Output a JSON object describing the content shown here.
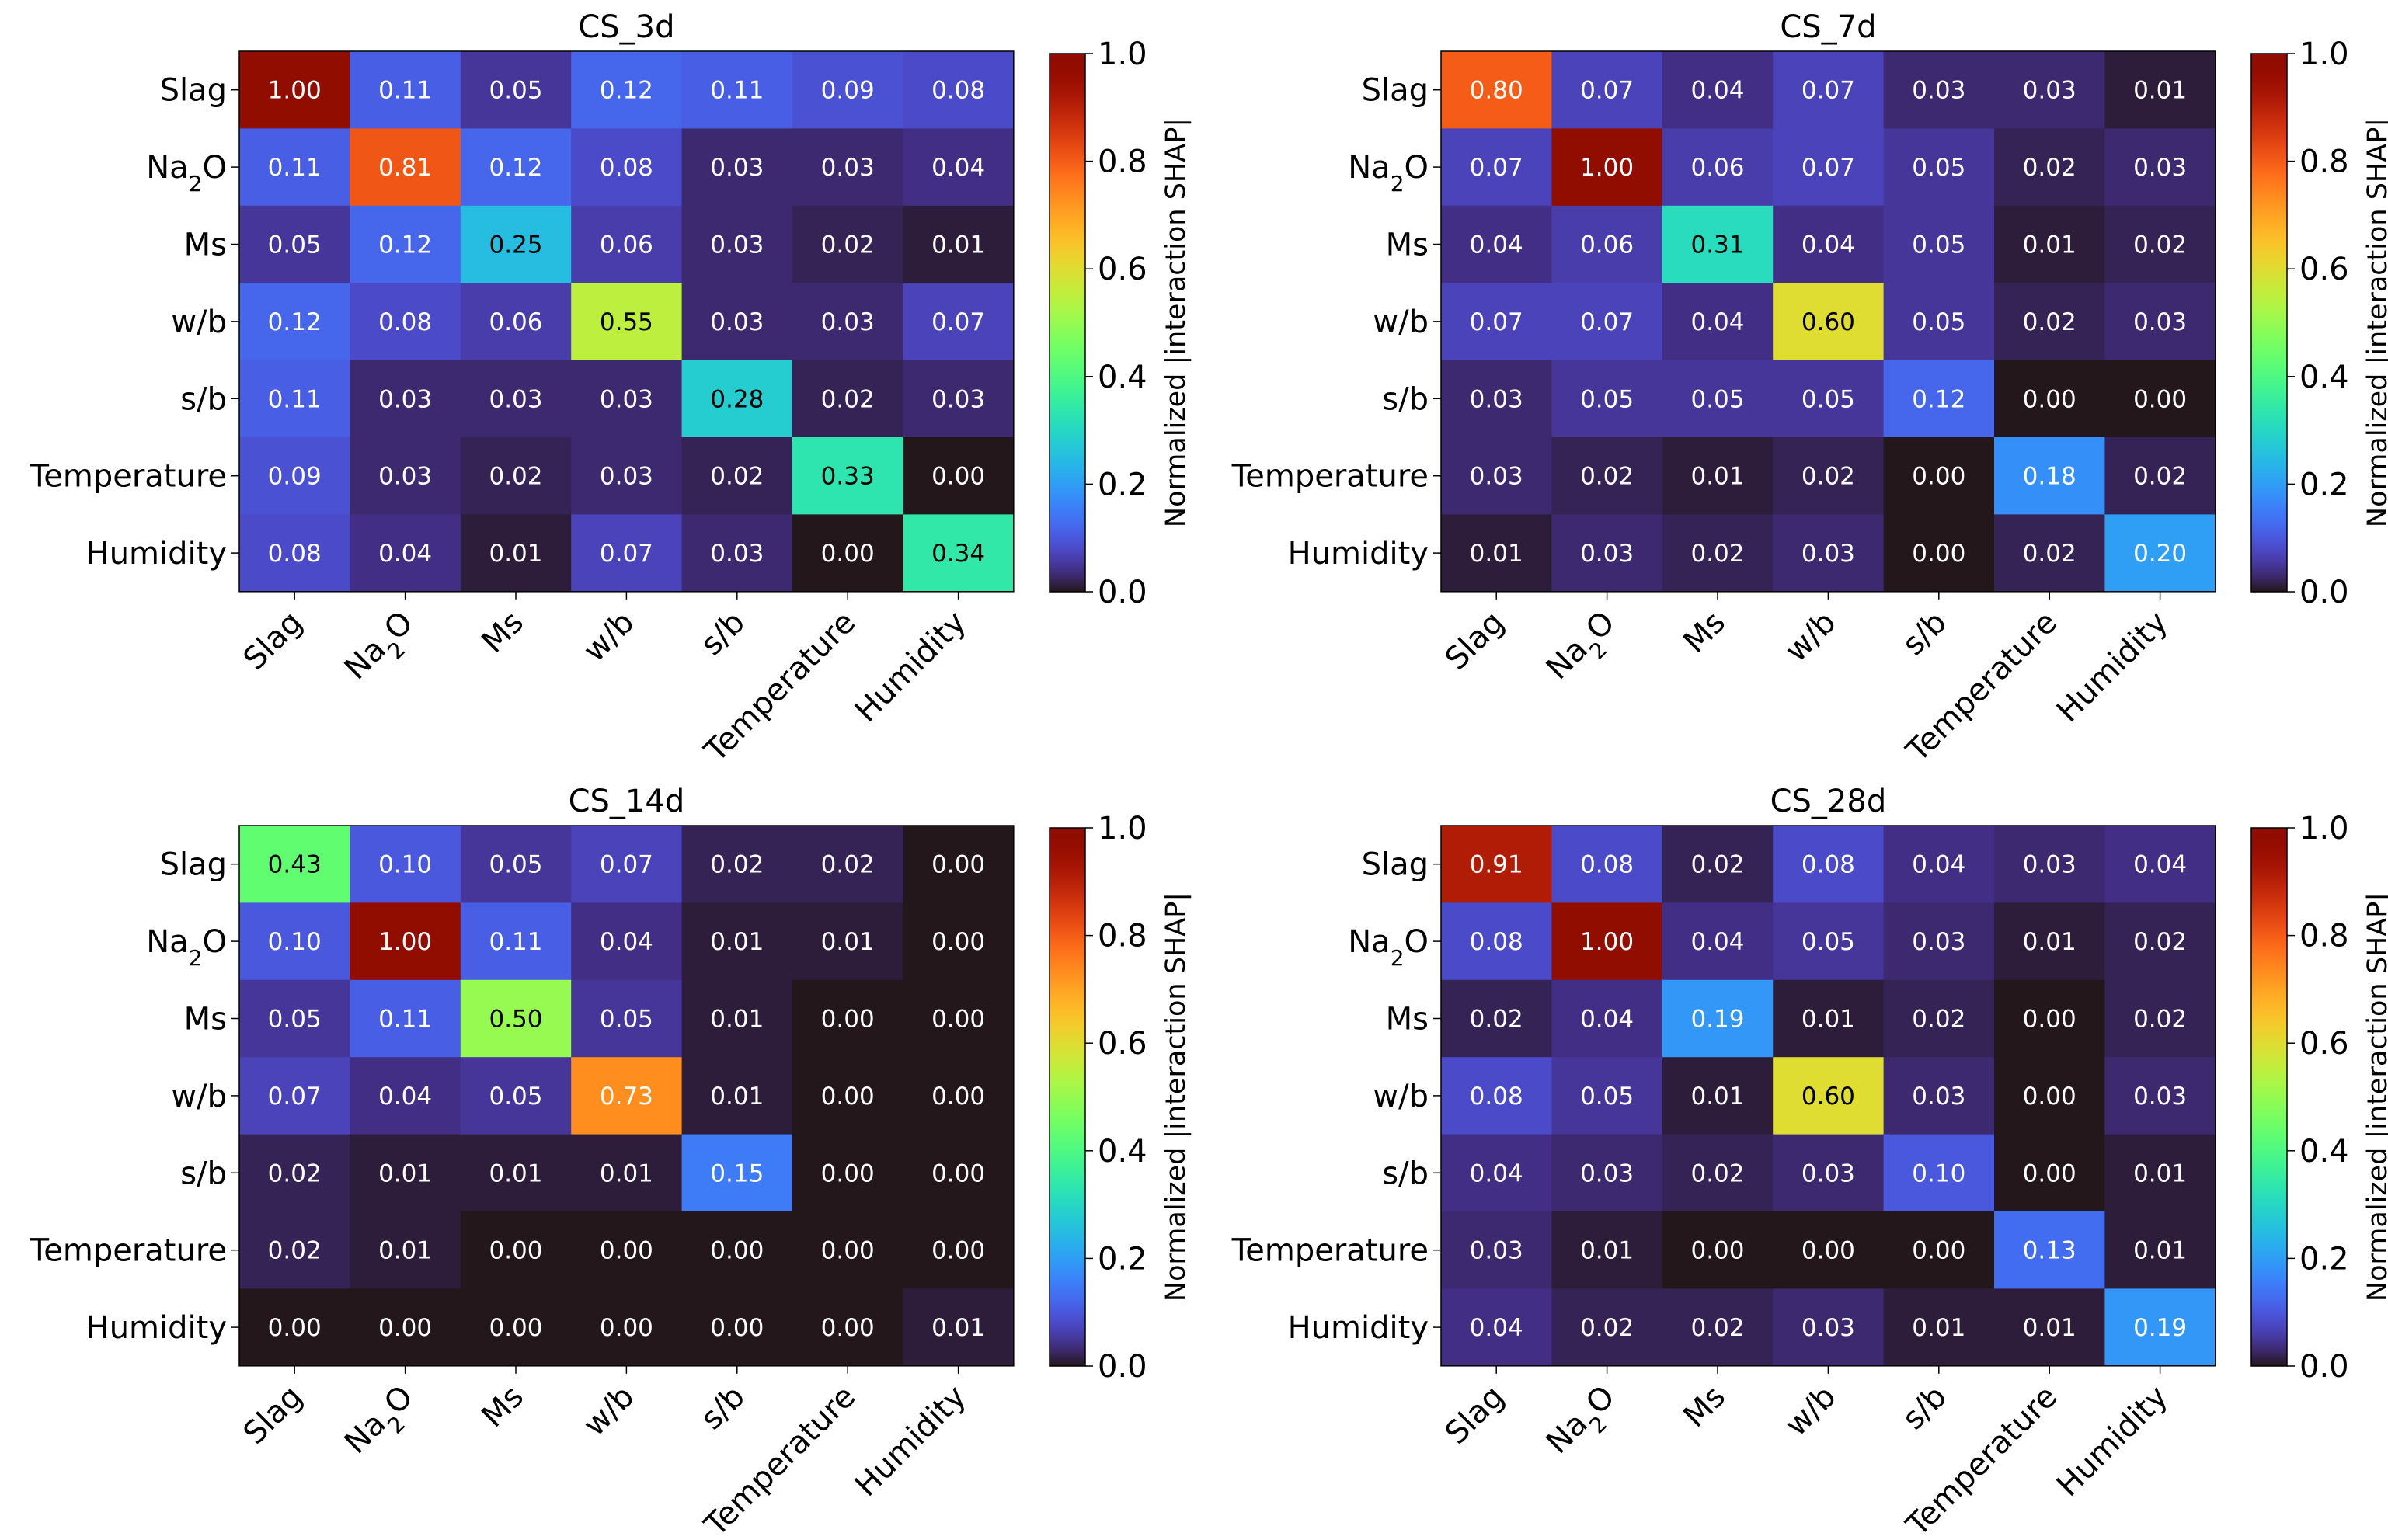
{
  "figure": {
    "features": [
      "Slag",
      "Na2O",
      "Ms",
      "w/b",
      "s/b",
      "Temperature",
      "Humidity"
    ],
    "colorbar": {
      "label": "Normalized |interaction SHAP|",
      "ticks": [
        "0.0",
        "0.2",
        "0.4",
        "0.6",
        "0.8",
        "1.0"
      ],
      "range": [
        0,
        1
      ],
      "colormap": "turbo"
    }
  },
  "chart_data": [
    {
      "type": "heatmap",
      "title": "CS_3d",
      "x": [
        "Slag",
        "Na2O",
        "Ms",
        "w/b",
        "s/b",
        "Temperature",
        "Humidity"
      ],
      "y": [
        "Slag",
        "Na2O",
        "Ms",
        "w/b",
        "s/b",
        "Temperature",
        "Humidity"
      ],
      "zlim": [
        0,
        1
      ],
      "colorbar_label": "Normalized |interaction SHAP|",
      "values": [
        [
          1.0,
          0.11,
          0.05,
          0.12,
          0.11,
          0.09,
          0.08
        ],
        [
          0.11,
          0.81,
          0.12,
          0.08,
          0.03,
          0.03,
          0.04
        ],
        [
          0.05,
          0.12,
          0.25,
          0.06,
          0.03,
          0.02,
          0.01
        ],
        [
          0.12,
          0.08,
          0.06,
          0.55,
          0.03,
          0.03,
          0.07
        ],
        [
          0.11,
          0.03,
          0.03,
          0.03,
          0.28,
          0.02,
          0.03
        ],
        [
          0.09,
          0.03,
          0.02,
          0.03,
          0.02,
          0.33,
          0.0
        ],
        [
          0.08,
          0.04,
          0.01,
          0.07,
          0.03,
          0.0,
          0.34
        ]
      ]
    },
    {
      "type": "heatmap",
      "title": "CS_7d",
      "x": [
        "Slag",
        "Na2O",
        "Ms",
        "w/b",
        "s/b",
        "Temperature",
        "Humidity"
      ],
      "y": [
        "Slag",
        "Na2O",
        "Ms",
        "w/b",
        "s/b",
        "Temperature",
        "Humidity"
      ],
      "zlim": [
        0,
        1
      ],
      "colorbar_label": "Normalized |interaction SHAP|",
      "values": [
        [
          0.8,
          0.07,
          0.04,
          0.07,
          0.03,
          0.03,
          0.01
        ],
        [
          0.07,
          1.0,
          0.06,
          0.07,
          0.05,
          0.02,
          0.03
        ],
        [
          0.04,
          0.06,
          0.31,
          0.04,
          0.05,
          0.01,
          0.02
        ],
        [
          0.07,
          0.07,
          0.04,
          0.6,
          0.05,
          0.02,
          0.03
        ],
        [
          0.03,
          0.05,
          0.05,
          0.05,
          0.12,
          0.0,
          0.0
        ],
        [
          0.03,
          0.02,
          0.01,
          0.02,
          0.0,
          0.18,
          0.02
        ],
        [
          0.01,
          0.03,
          0.02,
          0.03,
          0.0,
          0.02,
          0.2
        ]
      ]
    },
    {
      "type": "heatmap",
      "title": "CS_14d",
      "x": [
        "Slag",
        "Na2O",
        "Ms",
        "w/b",
        "s/b",
        "Temperature",
        "Humidity"
      ],
      "y": [
        "Slag",
        "Na2O",
        "Ms",
        "w/b",
        "s/b",
        "Temperature",
        "Humidity"
      ],
      "zlim": [
        0,
        1
      ],
      "colorbar_label": "Normalized |interaction SHAP|",
      "values": [
        [
          0.43,
          0.1,
          0.05,
          0.07,
          0.02,
          0.02,
          0.0
        ],
        [
          0.1,
          1.0,
          0.11,
          0.04,
          0.01,
          0.01,
          0.0
        ],
        [
          0.05,
          0.11,
          0.5,
          0.05,
          0.01,
          0.0,
          0.0
        ],
        [
          0.07,
          0.04,
          0.05,
          0.73,
          0.01,
          0.0,
          0.0
        ],
        [
          0.02,
          0.01,
          0.01,
          0.01,
          0.15,
          0.0,
          0.0
        ],
        [
          0.02,
          0.01,
          0.0,
          0.0,
          0.0,
          0.0,
          0.0
        ],
        [
          0.0,
          0.0,
          0.0,
          0.0,
          0.0,
          0.0,
          0.01
        ]
      ]
    },
    {
      "type": "heatmap",
      "title": "CS_28d",
      "x": [
        "Slag",
        "Na2O",
        "Ms",
        "w/b",
        "s/b",
        "Temperature",
        "Humidity"
      ],
      "y": [
        "Slag",
        "Na2O",
        "Ms",
        "w/b",
        "s/b",
        "Temperature",
        "Humidity"
      ],
      "zlim": [
        0,
        1
      ],
      "colorbar_label": "Normalized |interaction SHAP|",
      "values": [
        [
          0.91,
          0.08,
          0.02,
          0.08,
          0.04,
          0.03,
          0.04
        ],
        [
          0.08,
          1.0,
          0.04,
          0.05,
          0.03,
          0.01,
          0.02
        ],
        [
          0.02,
          0.04,
          0.19,
          0.01,
          0.02,
          0.0,
          0.02
        ],
        [
          0.08,
          0.05,
          0.01,
          0.6,
          0.03,
          0.0,
          0.03
        ],
        [
          0.04,
          0.03,
          0.02,
          0.03,
          0.1,
          0.0,
          0.01
        ],
        [
          0.03,
          0.01,
          0.0,
          0.0,
          0.0,
          0.13,
          0.01
        ],
        [
          0.04,
          0.02,
          0.02,
          0.03,
          0.01,
          0.01,
          0.19
        ]
      ]
    }
  ]
}
